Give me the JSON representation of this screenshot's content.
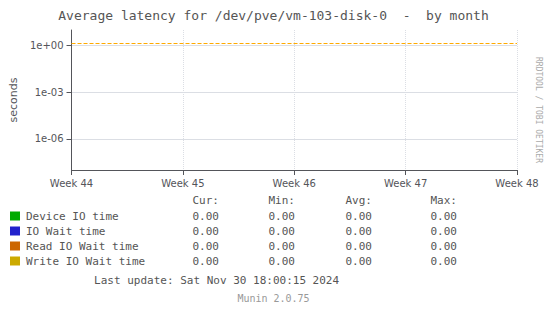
{
  "chart_data": {
    "type": "line",
    "title": "Average latency for /dev/pve/vm-103-disk-0  -  by month",
    "ylabel": "seconds",
    "categories": [
      "Week 44",
      "Week 45",
      "Week 46",
      "Week 47",
      "Week 48"
    ],
    "log": "y",
    "ylim": [
      1e-08,
      10
    ],
    "yticks": [
      {
        "value": 1e-06,
        "label": "1e-06"
      },
      {
        "value": 0.001,
        "label": "1e-03"
      },
      {
        "value": 1,
        "label": "1e+00"
      }
    ],
    "grid": true,
    "reference_lines": [
      {
        "value": 1.5,
        "color": "#ffaa00",
        "line_style": "dashed"
      }
    ],
    "stats_headers": [
      "Cur:",
      "Min:",
      "Avg:",
      "Max:"
    ],
    "series": [
      {
        "name": "Device IO time",
        "color": "#00aa00",
        "stats": [
          "0.00",
          "0.00",
          "0.00",
          "0.00"
        ]
      },
      {
        "name": "IO Wait time",
        "color": "#2222cc",
        "stats": [
          "0.00",
          "0.00",
          "0.00",
          "0.00"
        ]
      },
      {
        "name": "Read IO Wait time",
        "color": "#cc6600",
        "stats": [
          "0.00",
          "0.00",
          "0.00",
          "0.00"
        ]
      },
      {
        "name": "Write IO Wait time",
        "color": "#ccaa00",
        "stats": [
          "0.00",
          "0.00",
          "0.00",
          "0.00"
        ]
      }
    ],
    "annotations": [
      {
        "text": "Last update: Sat Nov 30 18:00:15 2024"
      },
      {
        "text": "Munin 2.0.75"
      },
      {
        "text": "RRDTOOL / TOBI OETIKER"
      }
    ]
  }
}
